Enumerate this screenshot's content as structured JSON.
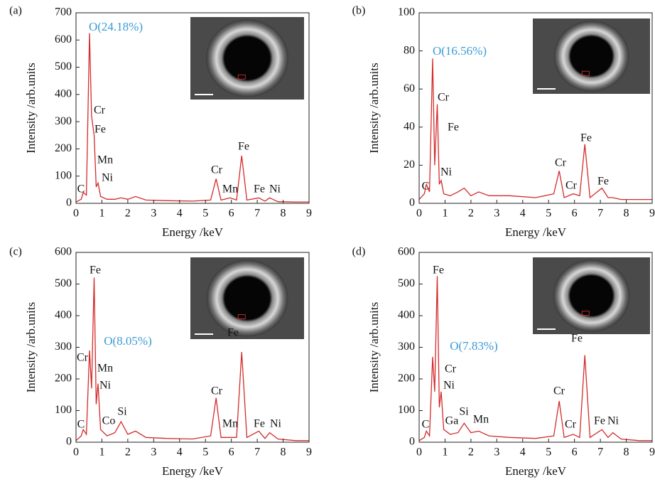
{
  "chart_data": [
    {
      "type": "line",
      "panel_label": "(a)",
      "xlabel": "Energy /keV",
      "ylabel": "Intensity /arb.units",
      "callout": "O(24.18%)",
      "annotations": [
        "C",
        "Cr",
        "Fe",
        "Mn",
        "Ni",
        "Cr",
        "Mn",
        "Fe",
        "Fe",
        "Ni"
      ],
      "x": [
        0,
        0.2,
        0.28,
        0.4,
        0.52,
        0.6,
        0.7,
        0.78,
        0.85,
        0.95,
        1.2,
        1.5,
        1.74,
        2.0,
        2.3,
        2.7,
        3.5,
        4.5,
        5.2,
        5.41,
        5.6,
        5.95,
        6.2,
        6.4,
        6.6,
        7.06,
        7.3,
        7.48,
        7.8,
        8.5,
        9
      ],
      "values": [
        5,
        15,
        40,
        30,
        625,
        320,
        250,
        60,
        75,
        25,
        15,
        15,
        20,
        15,
        25,
        12,
        10,
        8,
        12,
        90,
        12,
        20,
        12,
        175,
        12,
        20,
        8,
        20,
        6,
        5,
        5
      ],
      "color": "#d42a2a",
      "xlim": [
        0,
        9
      ],
      "xticks": [
        0,
        1,
        2,
        3,
        4,
        5,
        6,
        7,
        8,
        9
      ],
      "ylim": [
        0,
        700
      ],
      "yticks": [
        0,
        100,
        200,
        300,
        400,
        500,
        600,
        700
      ]
    },
    {
      "type": "line",
      "panel_label": "(b)",
      "xlabel": "Energy /keV",
      "ylabel": "Intensity /arb.units",
      "callout": "O(16.56%)",
      "annotations": [
        "C",
        "Cr",
        "Fe",
        "Ni",
        "Cr",
        "Cr",
        "Fe",
        "Fe"
      ],
      "x": [
        0,
        0.2,
        0.28,
        0.4,
        0.52,
        0.6,
        0.7,
        0.78,
        0.85,
        0.95,
        1.2,
        1.5,
        1.74,
        2.0,
        2.3,
        2.7,
        3.5,
        4.5,
        5.2,
        5.41,
        5.6,
        5.95,
        6.2,
        6.4,
        6.6,
        7.06,
        7.3,
        7.48,
        7.8,
        8.5,
        9
      ],
      "values": [
        2,
        5,
        10,
        6,
        76,
        20,
        52,
        10,
        12,
        5,
        4,
        6,
        8,
        4,
        6,
        4,
        4,
        3,
        5,
        17,
        3,
        5,
        4,
        31,
        3,
        8,
        3,
        3,
        2,
        2,
        2
      ],
      "color": "#d42a2a",
      "xlim": [
        0,
        9
      ],
      "xticks": [
        0,
        1,
        2,
        3,
        4,
        5,
        6,
        7,
        8,
        9
      ],
      "ylim": [
        0,
        100
      ],
      "yticks": [
        0,
        20,
        40,
        60,
        80,
        100
      ]
    },
    {
      "type": "line",
      "panel_label": "(c)",
      "xlabel": "Energy /keV",
      "ylabel": "Intensity /arb.units",
      "callout": "O(8.05%)",
      "annotations": [
        "C",
        "Fe",
        "Cr",
        "Mn",
        "Ni",
        "Co",
        "Si",
        "Cr",
        "Mn",
        "Fe",
        "Fe",
        "Ni"
      ],
      "x": [
        0,
        0.2,
        0.28,
        0.4,
        0.52,
        0.6,
        0.7,
        0.78,
        0.85,
        0.95,
        1.2,
        1.5,
        1.74,
        2.0,
        2.3,
        2.7,
        3.5,
        4.5,
        5.2,
        5.41,
        5.6,
        5.95,
        6.2,
        6.4,
        6.6,
        7.06,
        7.3,
        7.48,
        7.8,
        8.5,
        9
      ],
      "values": [
        5,
        20,
        40,
        25,
        290,
        170,
        520,
        120,
        185,
        40,
        20,
        30,
        65,
        25,
        35,
        15,
        12,
        10,
        20,
        140,
        15,
        15,
        15,
        285,
        15,
        35,
        12,
        30,
        10,
        5,
        5
      ],
      "color": "#d42a2a",
      "xlim": [
        0,
        9
      ],
      "xticks": [
        0,
        1,
        2,
        3,
        4,
        5,
        6,
        7,
        8,
        9
      ],
      "ylim": [
        0,
        600
      ],
      "yticks": [
        0,
        100,
        200,
        300,
        400,
        500,
        600
      ]
    },
    {
      "type": "line",
      "panel_label": "(d)",
      "xlabel": "Energy /keV",
      "ylabel": "Intensity /arb.units",
      "callout": "O(7.83%)",
      "annotations": [
        "C",
        "Fe",
        "Cr",
        "Ni",
        "Ga",
        "Si",
        "Mn",
        "Cr",
        "Cr",
        "Fe",
        "Fe",
        "Ni"
      ],
      "x": [
        0,
        0.2,
        0.28,
        0.4,
        0.52,
        0.6,
        0.7,
        0.78,
        0.85,
        0.95,
        1.2,
        1.5,
        1.74,
        2.0,
        2.3,
        2.7,
        3.5,
        4.5,
        5.2,
        5.41,
        5.6,
        5.95,
        6.2,
        6.4,
        6.6,
        7.06,
        7.3,
        7.48,
        7.8,
        8.5,
        9
      ],
      "values": [
        5,
        15,
        35,
        20,
        270,
        160,
        525,
        110,
        160,
        40,
        25,
        30,
        60,
        30,
        35,
        20,
        15,
        12,
        20,
        130,
        15,
        25,
        15,
        275,
        15,
        40,
        15,
        30,
        10,
        5,
        5
      ],
      "color": "#d42a2a",
      "xlim": [
        0,
        9
      ],
      "xticks": [
        0,
        1,
        2,
        3,
        4,
        5,
        6,
        7,
        8,
        9
      ],
      "ylim": [
        0,
        600
      ],
      "yticks": [
        0,
        100,
        200,
        300,
        400,
        500,
        600
      ]
    }
  ]
}
